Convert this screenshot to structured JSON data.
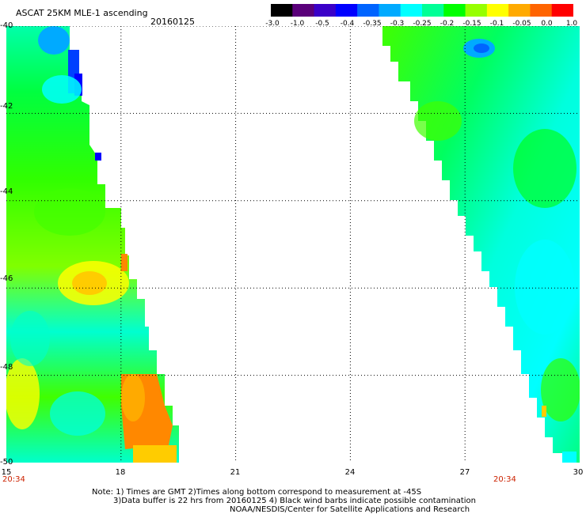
{
  "header": {
    "title": "ASCAT 25KM MLE-1 ascending",
    "date": "20160125"
  },
  "colorbar": {
    "ticks": [
      "-3.0",
      "-1.0",
      "-0.5",
      "-0.4",
      "-0.35",
      "-0.3",
      "-0.25",
      "-0.2",
      "-0.15",
      "-0.1",
      "-0.05",
      "0.0",
      "1.0"
    ],
    "colors": [
      "#000000",
      "#5a007a",
      "#3a00c8",
      "#0000ff",
      "#0064ff",
      "#00aaff",
      "#00ffff",
      "#00ff96",
      "#00ff00",
      "#96ff00",
      "#ffff00",
      "#ffaa00",
      "#ff6400",
      "#ff0000"
    ]
  },
  "map": {
    "lat_range": [
      -50,
      -40
    ],
    "lon_range": [
      15,
      30
    ],
    "y_tick_labels": [
      "-40",
      "-42",
      "-44",
      "-46",
      "-48",
      "-50"
    ],
    "x_tick_labels": [
      "15",
      "18",
      "21",
      "24",
      "27",
      "30"
    ],
    "pass_times": [
      "20:34",
      "20:34"
    ],
    "swaths": [
      {
        "name": "west",
        "edge_lon": 18.5
      },
      {
        "name": "east",
        "edge_lon": 25.0
      }
    ]
  },
  "notes": [
    "Note: 1) Times are GMT 2)Times along bottom correspond to measurement at -45S",
    "3)Data buffer is 22 hrs from 20160125 4) Black wind barbs indicate possible contamination",
    "NOAA/NESDIS/Center for Satellite Applications and Research"
  ]
}
